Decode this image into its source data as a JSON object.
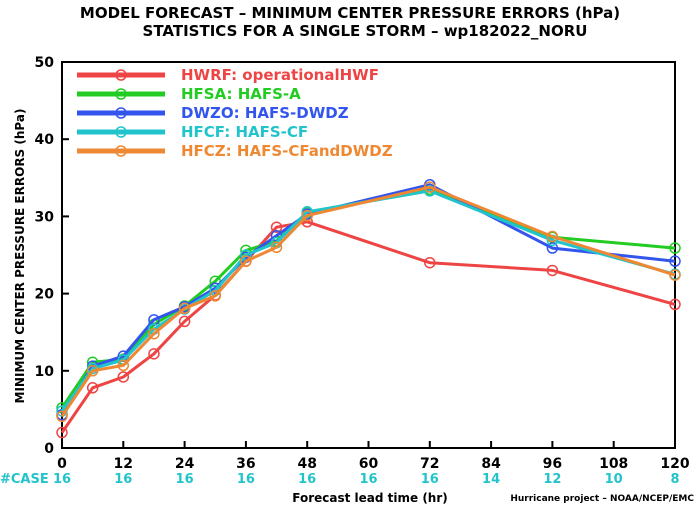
{
  "chart_data": {
    "type": "line",
    "title": "MODEL FORECAST – MINIMUM CENTER PRESSURE ERRORS (hPa)",
    "subtitle": "STATISTICS FOR A SINGLE STORM – wp182022_NORU",
    "xlabel": "Forecast lead time (hr)",
    "ylabel": "MINIMUM CENTER PRESSURE ERRORS (hPa)",
    "xlim": [
      0,
      120
    ],
    "ylim": [
      0,
      50
    ],
    "xticks": [
      "0",
      "12",
      "24",
      "36",
      "48",
      "60",
      "72",
      "84",
      "96",
      "108",
      "120"
    ],
    "yticks": [
      "0",
      "10",
      "20",
      "30",
      "40",
      "50"
    ],
    "grid": false,
    "legend_position": "top-left",
    "case_label": "#CASE",
    "case_color": "#22c4cc",
    "case_leads": [
      0,
      12,
      24,
      36,
      48,
      60,
      72,
      84,
      96,
      108,
      120
    ],
    "case_counts": [
      "16",
      "16",
      "16",
      "16",
      "16",
      "16",
      "16",
      "14",
      "12",
      "10",
      "8"
    ],
    "credit": "Hurricane project – NOAA/NCEP/EMC",
    "series": [
      {
        "name": "HWRF: operationalHWF",
        "color": "#ee4444",
        "x": [
          0,
          6,
          12,
          18,
          24,
          30,
          36,
          42,
          48,
          72,
          96,
          120
        ],
        "y": [
          2.0,
          7.8,
          9.2,
          12.2,
          16.4,
          19.8,
          24.2,
          28.6,
          29.3,
          24.0,
          23.0,
          18.6
        ]
      },
      {
        "name": "HFSA: HAFS-A",
        "color": "#22cc22",
        "x": [
          0,
          6,
          12,
          18,
          24,
          30,
          36,
          42,
          48,
          72,
          96,
          120
        ],
        "y": [
          5.2,
          11.1,
          11.5,
          16.0,
          18.4,
          21.6,
          25.6,
          26.8,
          30.5,
          33.5,
          27.3,
          25.9
        ]
      },
      {
        "name": "DWZO: HAFS-DWDZ",
        "color": "#3355ee",
        "x": [
          0,
          6,
          12,
          18,
          24,
          30,
          36,
          42,
          48,
          72,
          96,
          120
        ],
        "y": [
          4.3,
          10.6,
          11.9,
          16.6,
          18.3,
          20.7,
          24.7,
          27.5,
          30.3,
          34.1,
          25.9,
          24.2
        ]
      },
      {
        "name": "HFCF: HAFS-CF",
        "color": "#22c4cc",
        "x": [
          0,
          6,
          12,
          18,
          24,
          30,
          36,
          42,
          48,
          72,
          96,
          120
        ],
        "y": [
          4.8,
          10.3,
          11.4,
          15.4,
          18.0,
          20.4,
          25.0,
          26.6,
          30.6,
          33.3,
          26.9,
          22.5
        ]
      },
      {
        "name": "HFCZ: HAFS-CFandDWDZ",
        "color": "#ee8833",
        "x": [
          0,
          6,
          12,
          18,
          24,
          30,
          36,
          42,
          48,
          72,
          96,
          120
        ],
        "y": [
          4.1,
          10.0,
          10.7,
          14.8,
          18.1,
          19.7,
          24.2,
          26.0,
          30.1,
          33.8,
          27.4,
          22.4
        ]
      }
    ]
  }
}
